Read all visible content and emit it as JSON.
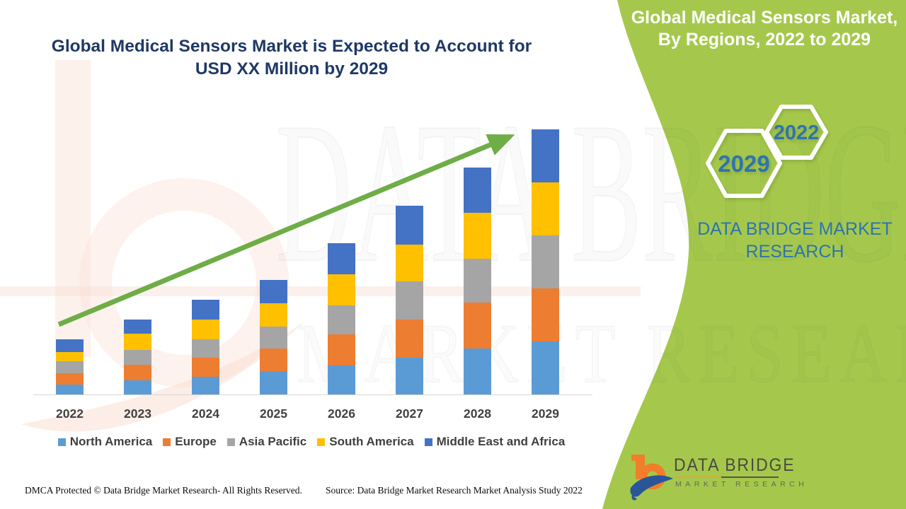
{
  "page": {
    "background": "#FFFFFF",
    "panel_green": "#A5C84C",
    "arrow_green": "#6FAD47",
    "title_navy": "#1F3865",
    "steel_blue": "#2E74AE"
  },
  "left": {
    "title_line1": "Global Medical Sensors Market is Expected to Account for",
    "title_line2": "USD XX Million by 2029",
    "footer_dmca": "DMCA Protected © Data Bridge Market Research- All Rights Reserved.",
    "footer_source": "Source: Data Bridge Market Research Market Analysis Study 2022"
  },
  "right_panel": {
    "title_line1": "Global Medical Sensors Market,",
    "title_line2": "By Regions, 2022 to 2029",
    "hexagons": [
      {
        "label": "2029"
      },
      {
        "label": "2022"
      }
    ],
    "brand_line1": "DATA BRIDGE MARKET",
    "brand_line2": "RESEARCH"
  },
  "watermark": {
    "line1": "DATA BRIDGE",
    "line2": "MARKET RESEARCH"
  },
  "logo": {
    "name": "DATA BRIDGE",
    "subtitle": "MARKET RESEARCH"
  },
  "chart_data": {
    "type": "bar",
    "stacked": true,
    "grid": false,
    "y_axis_visible": false,
    "legend_position": "bottom",
    "trend_arrow": true,
    "title": "Global Medical Sensors Market is Expected to Account for USD XX Million by 2029",
    "xlabel": "",
    "ylabel": "",
    "units": "USD Million (values masked as XX)",
    "categories": [
      "2022",
      "2023",
      "2024",
      "2025",
      "2026",
      "2027",
      "2028",
      "2029"
    ],
    "series": [
      {
        "name": "North America",
        "color": "#5B9BD5",
        "values": [
          14,
          20,
          25,
          33,
          41,
          52,
          65,
          75
        ]
      },
      {
        "name": "Europe",
        "color": "#ED7D31",
        "values": [
          16,
          22,
          27,
          32,
          44,
          54,
          65,
          75
        ]
      },
      {
        "name": "Asia Pacific",
        "color": "#A5A5A5",
        "values": [
          17,
          21,
          26,
          31,
          41,
          54,
          62,
          75
        ]
      },
      {
        "name": "South America",
        "color": "#FFC000",
        "values": [
          13,
          23,
          28,
          33,
          44,
          52,
          65,
          75
        ]
      },
      {
        "name": "Middle East and Africa",
        "color": "#4472C4",
        "values": [
          18,
          20,
          28,
          33,
          44,
          55,
          64,
          75
        ]
      }
    ],
    "totals": [
      78,
      106,
      134,
      162,
      214,
      267,
      321,
      375
    ]
  }
}
